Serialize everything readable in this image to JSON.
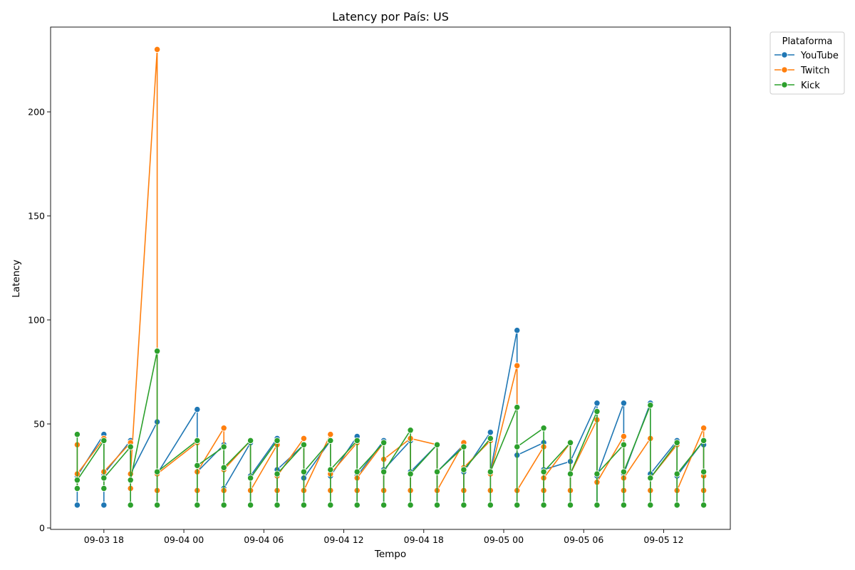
{
  "colors": {
    "YouTube": "#1f77b4",
    "Twitch": "#ff7f0e",
    "Kick": "#2ca02c"
  },
  "chart_data": {
    "type": "line",
    "title": "Latency por País: US",
    "xlabel": "Tempo",
    "ylabel": "Latency",
    "x_ticks": [
      "09-03 18",
      "09-04 00",
      "09-04 06",
      "09-04 12",
      "09-04 18",
      "09-05 00",
      "09-05 06",
      "09-05 12"
    ],
    "y_ticks": [
      "0",
      "50",
      "100",
      "150",
      "200"
    ],
    "ylim": [
      0,
      235
    ],
    "xlim": [
      "2025-09-03 14:00",
      "2025-09-05 17:00"
    ],
    "grid": false,
    "legend": {
      "title": "Plataforma",
      "placement": "outside-top-right"
    },
    "series": [
      {
        "name": "YouTube",
        "points": [
          [
            "2025-09-03 16:00",
            [
              25,
              11,
              25
            ]
          ],
          [
            "2025-09-03 18:00",
            [
              45,
              11,
              26
            ]
          ],
          [
            "2025-09-03 20:00",
            [
              42,
              11,
              26
            ]
          ],
          [
            "2025-09-03 22:00",
            [
              51,
              11,
              26
            ]
          ],
          [
            "2025-09-04 01:00",
            [
              57,
              11,
              27
            ]
          ],
          [
            "2025-09-04 03:00",
            [
              40,
              11,
              19
            ]
          ],
          [
            "2025-09-04 05:00",
            [
              41,
              11,
              25
            ]
          ],
          [
            "2025-09-04 07:00",
            [
              43,
              11,
              28
            ]
          ],
          [
            "2025-09-04 09:00",
            [
              40,
              11,
              24
            ]
          ],
          [
            "2025-09-04 11:00",
            [
              42,
              11,
              25
            ]
          ],
          [
            "2025-09-04 13:00",
            [
              44,
              11,
              25
            ]
          ],
          [
            "2025-09-04 15:00",
            [
              42,
              11,
              28
            ]
          ],
          [
            "2025-09-04 17:00",
            [
              42,
              11,
              27
            ]
          ],
          [
            "2025-09-04 19:00",
            [
              40,
              11,
              27
            ]
          ],
          [
            "2025-09-04 21:00",
            [
              40,
              11,
              27
            ]
          ],
          [
            "2025-09-04 23:00",
            [
              46,
              11,
              27
            ]
          ],
          [
            "2025-09-05 01:00",
            [
              95,
              11,
              35
            ]
          ],
          [
            "2025-09-05 03:00",
            [
              41,
              11,
              28
            ]
          ],
          [
            "2025-09-05 05:00",
            [
              32,
              11,
              32
            ]
          ],
          [
            "2025-09-05 07:00",
            [
              60,
              11,
              25
            ]
          ],
          [
            "2025-09-05 09:00",
            [
              60,
              11,
              26
            ]
          ],
          [
            "2025-09-05 11:00",
            [
              60,
              11,
              26
            ]
          ],
          [
            "2025-09-05 13:00",
            [
              42,
              11,
              25
            ]
          ],
          [
            "2025-09-05 15:00",
            [
              42,
              11,
              40
            ]
          ]
        ]
      },
      {
        "name": "Twitch",
        "points": [
          [
            "2025-09-03 16:00",
            [
              40,
              19,
              26
            ]
          ],
          [
            "2025-09-03 18:00",
            [
              43,
              19,
              27
            ]
          ],
          [
            "2025-09-03 20:00",
            [
              41,
              19,
              26
            ]
          ],
          [
            "2025-09-03 22:00",
            [
              230,
              18,
              26
            ]
          ],
          [
            "2025-09-04 01:00",
            [
              41,
              18,
              27
            ]
          ],
          [
            "2025-09-04 03:00",
            [
              48,
              18,
              28
            ]
          ],
          [
            "2025-09-04 05:00",
            [
              42,
              18,
              18
            ]
          ],
          [
            "2025-09-04 07:00",
            [
              40,
              18,
              25
            ]
          ],
          [
            "2025-09-04 09:00",
            [
              43,
              18,
              18
            ]
          ],
          [
            "2025-09-04 11:00",
            [
              45,
              18,
              26
            ]
          ],
          [
            "2025-09-04 13:00",
            [
              41,
              18,
              24
            ]
          ],
          [
            "2025-09-04 15:00",
            [
              41,
              18,
              33
            ]
          ],
          [
            "2025-09-04 17:00",
            [
              43,
              18,
              43
            ]
          ],
          [
            "2025-09-04 19:00",
            [
              40,
              18,
              18
            ]
          ],
          [
            "2025-09-04 21:00",
            [
              41,
              18,
              29
            ]
          ],
          [
            "2025-09-04 23:00",
            [
              42,
              18,
              26
            ]
          ],
          [
            "2025-09-05 01:00",
            [
              78,
              18,
              18
            ]
          ],
          [
            "2025-09-05 03:00",
            [
              39,
              18,
              24
            ]
          ],
          [
            "2025-09-05 05:00",
            [
              41,
              18,
              26
            ]
          ],
          [
            "2025-09-05 07:00",
            [
              52,
              22,
              22
            ]
          ],
          [
            "2025-09-05 09:00",
            [
              44,
              18,
              24
            ]
          ],
          [
            "2025-09-05 11:00",
            [
              43,
              18,
              24
            ]
          ],
          [
            "2025-09-05 13:00",
            [
              40,
              18,
              18
            ]
          ],
          [
            "2025-09-05 15:00",
            [
              48,
              18,
              25
            ]
          ]
        ]
      },
      {
        "name": "Kick",
        "points": [
          [
            "2025-09-03 16:00",
            [
              45,
              19,
              23
            ]
          ],
          [
            "2025-09-03 18:00",
            [
              42,
              19,
              24
            ]
          ],
          [
            "2025-09-03 20:00",
            [
              39,
              11,
              23
            ]
          ],
          [
            "2025-09-03 22:00",
            [
              85,
              11,
              27
            ]
          ],
          [
            "2025-09-04 01:00",
            [
              42,
              11,
              30
            ]
          ],
          [
            "2025-09-04 03:00",
            [
              39,
              11,
              29
            ]
          ],
          [
            "2025-09-04 05:00",
            [
              42,
              11,
              24
            ]
          ],
          [
            "2025-09-04 07:00",
            [
              42,
              11,
              26
            ]
          ],
          [
            "2025-09-04 09:00",
            [
              40,
              11,
              27
            ]
          ],
          [
            "2025-09-04 11:00",
            [
              42,
              11,
              28
            ]
          ],
          [
            "2025-09-04 13:00",
            [
              42,
              11,
              27
            ]
          ],
          [
            "2025-09-04 15:00",
            [
              41,
              11,
              27
            ]
          ],
          [
            "2025-09-04 17:00",
            [
              47,
              11,
              26
            ]
          ],
          [
            "2025-09-04 19:00",
            [
              40,
              11,
              27
            ]
          ],
          [
            "2025-09-04 21:00",
            [
              39,
              11,
              28
            ]
          ],
          [
            "2025-09-04 23:00",
            [
              43,
              11,
              27
            ]
          ],
          [
            "2025-09-05 01:00",
            [
              58,
              11,
              39
            ]
          ],
          [
            "2025-09-05 03:00",
            [
              48,
              11,
              27
            ]
          ],
          [
            "2025-09-05 05:00",
            [
              41,
              11,
              26
            ]
          ],
          [
            "2025-09-05 07:00",
            [
              56,
              11,
              26
            ]
          ],
          [
            "2025-09-05 09:00",
            [
              40,
              11,
              27
            ]
          ],
          [
            "2025-09-05 11:00",
            [
              59,
              11,
              24
            ]
          ],
          [
            "2025-09-05 13:00",
            [
              41,
              11,
              26
            ]
          ],
          [
            "2025-09-05 15:00",
            [
              42,
              11,
              27
            ]
          ]
        ]
      }
    ]
  }
}
